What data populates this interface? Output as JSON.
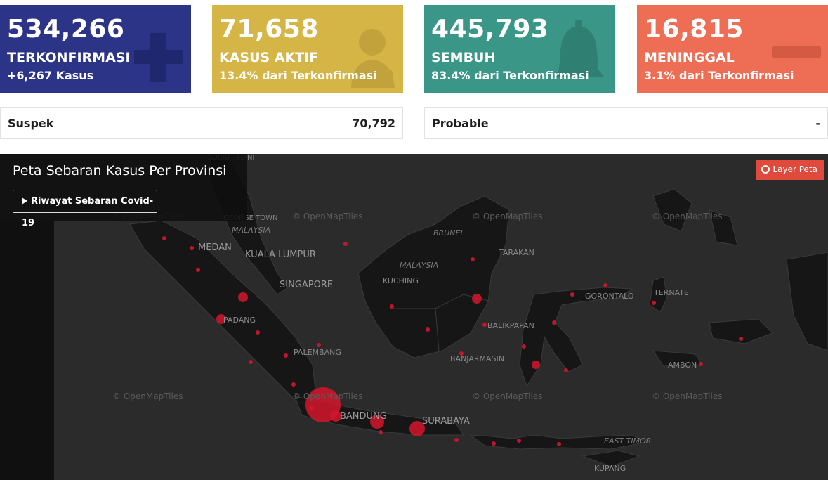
{
  "stats": {
    "confirmed": {
      "value": "534,266",
      "label": "TERKONFIRMASI",
      "sub": "+6,267 Kasus",
      "color": "#2c3487",
      "icon": "plus-icon"
    },
    "active": {
      "value": "71,658",
      "label": "KASUS AKTIF",
      "sub": "13.4% dari Terkonfirmasi",
      "color": "#d4b545",
      "icon": "doctor-icon"
    },
    "recovered": {
      "value": "445,793",
      "label": "SEMBUH",
      "sub": "83.4% dari Terkonfirmasi",
      "color": "#3a9687",
      "icon": "bell-icon"
    },
    "deaths": {
      "value": "16,815",
      "label": "MENINGGAL",
      "sub": "3.1% dari Terkonfirmasi",
      "color": "#ed6e55",
      "icon": "minus-icon"
    }
  },
  "suspek": {
    "label": "Suspek",
    "value": "70,792"
  },
  "probable": {
    "label": "Probable",
    "value": "-"
  },
  "map": {
    "title": "Peta Sebaran Kasus Per Provinsi",
    "history_button": "Riwayat Sebaran Covid-19",
    "layer_button": "Layer Peta",
    "attribution": "© OpenMapTiles",
    "marker_color": "#d3152c",
    "labels": {
      "surat_thani": "SURAT THANI",
      "george_town": "GEORGE TOWN",
      "malaysia_w": "MALAYSIA",
      "medan": "MEDAN",
      "kuala_lumpur": "KUALA LUMPUR",
      "singapore": "SINGAPORE",
      "padang": "PADANG",
      "palembang": "PALEMBANG",
      "bandung": "BANDUNG",
      "surabaya": "SURABAYA",
      "brunei": "BRUNEI",
      "malaysia_e": "MALAYSIA",
      "kuching": "KUCHING",
      "tarakan": "TARAKAN",
      "balikpapan": "BALIKPAPAN",
      "banjarmasin": "BANJARMASIN",
      "gorontalo": "GORONTALO",
      "ternate": "TERNATE",
      "ambon": "AMBON",
      "east_timor": "EAST TIMOR",
      "kupang": "KUPANG"
    }
  }
}
